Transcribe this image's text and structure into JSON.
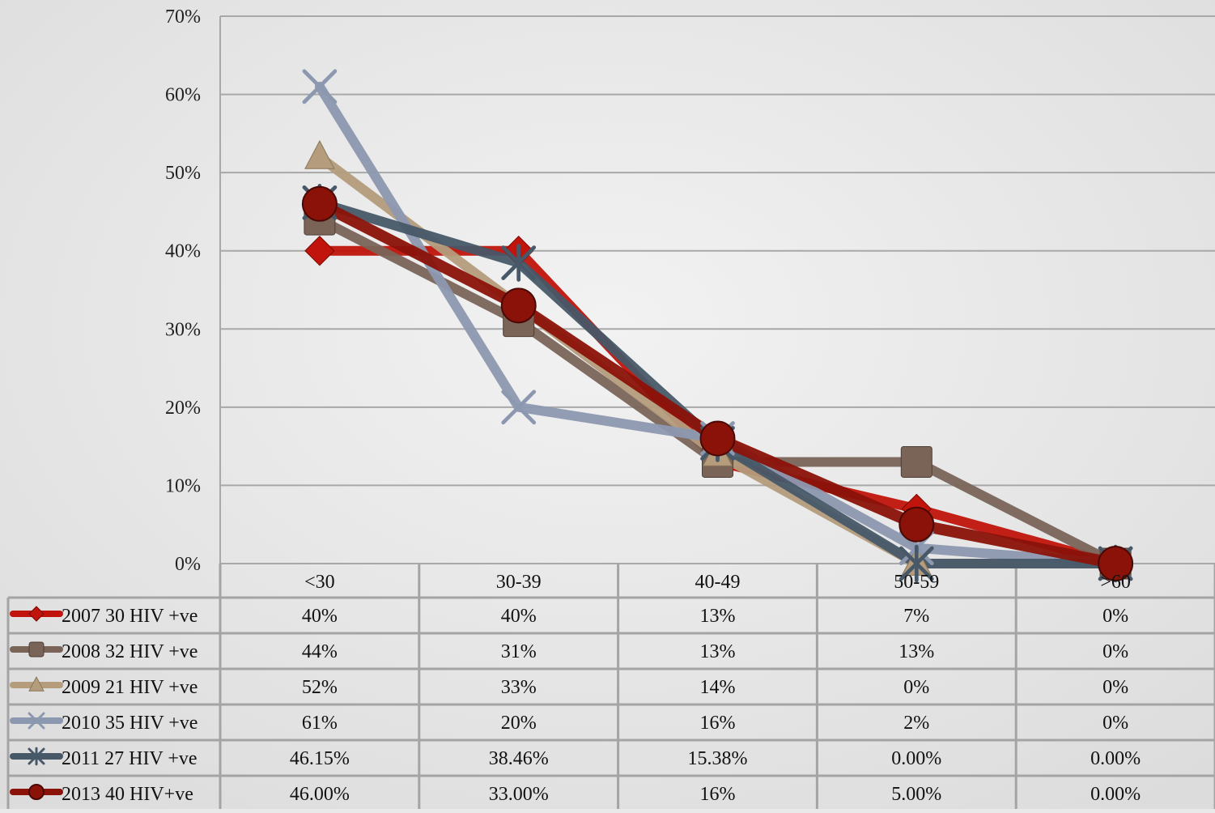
{
  "chart_data": {
    "type": "line",
    "title": "",
    "xlabel": "",
    "ylabel": "",
    "ylim": [
      0,
      70
    ],
    "y_ticks": [
      "0%",
      "10%",
      "20%",
      "30%",
      "40%",
      "50%",
      "60%",
      "70%"
    ],
    "categories": [
      "<30",
      "30-39",
      "40-49",
      "50-59",
      ">60"
    ],
    "grid": true,
    "legend": "data-table-below",
    "series": [
      {
        "name": "2007 30 HIV +ve",
        "color": "#c0140c",
        "marker": "diamond",
        "values": [
          40,
          40,
          13,
          7,
          0
        ],
        "labels": [
          "40%",
          "40%",
          "13%",
          "7%",
          "0%"
        ]
      },
      {
        "name": "2008 32 HIV +ve",
        "color": "#7a6458",
        "marker": "square",
        "values": [
          44,
          31,
          13,
          13,
          0
        ],
        "labels": [
          "44%",
          "31%",
          "13%",
          "13%",
          "0%"
        ]
      },
      {
        "name": "2009 21 HIV +ve",
        "color": "#b49c7c",
        "marker": "triangle",
        "values": [
          52,
          33,
          14,
          0,
          0
        ],
        "labels": [
          "52%",
          "33%",
          "14%",
          "0%",
          "0%"
        ]
      },
      {
        "name": "2010 35 HIV +ve",
        "color": "#8c98b0",
        "marker": "x",
        "values": [
          61,
          20,
          16,
          2,
          0
        ],
        "labels": [
          "61%",
          "20%",
          "16%",
          "2%",
          "0%"
        ]
      },
      {
        "name": "2011 27 HIV +ve",
        "color": "#475868",
        "marker": "star",
        "values": [
          46.15,
          38.46,
          15.38,
          0,
          0
        ],
        "labels": [
          "46.15%",
          "38.46%",
          "15.38%",
          "0.00%",
          "0.00%"
        ]
      },
      {
        "name": "2013 40 HIV+ve",
        "color": "#8a1208",
        "marker": "circle",
        "values": [
          46,
          33,
          16,
          5,
          0
        ],
        "labels": [
          "46.00%",
          "33.00%",
          "16%",
          "5.00%",
          "0.00%"
        ]
      }
    ]
  }
}
